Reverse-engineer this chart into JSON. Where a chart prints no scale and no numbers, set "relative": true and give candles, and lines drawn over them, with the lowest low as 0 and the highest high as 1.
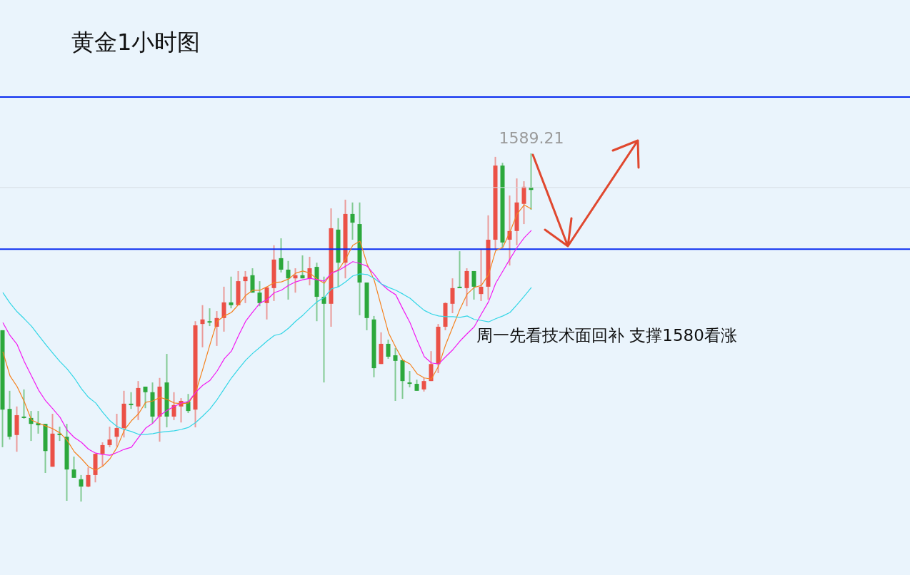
{
  "chart_data": {
    "type": "candlestick",
    "title": "黄金1小时图",
    "relative": true,
    "categories": [
      null,
      null,
      null,
      null,
      null,
      null,
      null,
      null,
      null,
      null,
      null,
      null,
      null,
      null,
      null,
      null,
      null,
      null,
      null,
      null,
      null,
      null,
      null,
      null,
      null,
      null,
      null,
      null,
      null,
      null,
      null,
      null,
      null,
      null,
      null,
      null,
      null,
      null,
      null,
      null,
      null,
      null,
      null,
      null,
      null,
      null,
      null,
      null,
      null,
      null,
      null,
      null,
      null,
      null,
      null,
      null,
      null,
      null,
      null,
      null,
      null,
      null,
      null,
      null,
      null,
      null,
      null,
      null,
      null,
      null,
      null,
      null,
      null,
      null,
      null
    ],
    "series": [
      {
        "ohlc": [
          [
            0.492,
            0.492,
            0.156,
            0.264
          ],
          [
            0.266,
            0.318,
            0.178,
            0.186
          ],
          [
            0.191,
            0.273,
            0.143,
            0.248
          ],
          [
            0.244,
            0.322,
            0.238,
            0.24
          ],
          [
            0.24,
            0.26,
            0.174,
            0.223
          ],
          [
            0.225,
            0.26,
            0.195,
            0.219
          ],
          [
            0.223,
            0.223,
            0.082,
            0.145
          ],
          [
            0.1,
            0.252,
            0.1,
            0.195
          ],
          [
            0.195,
            0.215,
            0.174,
            0.191
          ],
          [
            0.186,
            0.223,
            0.002,
            0.092
          ],
          [
            0.092,
            0.129,
            0.068,
            0.068
          ],
          [
            0.064,
            0.076,
            0,
            0.043
          ],
          [
            0.043,
            0.098,
            0.041,
            0.076
          ],
          [
            0.076,
            0.137,
            0.055,
            0.137
          ],
          [
            0.137,
            0.17,
            0.102,
            0.162
          ],
          [
            0.162,
            0.215,
            0.156,
            0.178
          ],
          [
            0.186,
            0.252,
            0.158,
            0.211
          ],
          [
            0.211,
            0.318,
            0.184,
            0.281
          ],
          [
            0.281,
            0.314,
            0.266,
            0.277
          ],
          [
            0.273,
            0.346,
            0.234,
            0.326
          ],
          [
            0.33,
            0.33,
            0.268,
            0.314
          ],
          [
            0.314,
            0.342,
            0.225,
            0.244
          ],
          [
            0.244,
            0.355,
            0.172,
            0.33
          ],
          [
            0.342,
            0.424,
            0.213,
            0.244
          ],
          [
            0.244,
            0.314,
            0.234,
            0.277
          ],
          [
            0.273,
            0.297,
            0.227,
            0.289
          ],
          [
            0.287,
            0.309,
            0.254,
            0.26
          ],
          [
            0.264,
            0.518,
            0.213,
            0.506
          ],
          [
            0.51,
            0.564,
            0.443,
            0.523
          ],
          [
            0.518,
            0.555,
            0.504,
            0.514
          ],
          [
            0.502,
            0.547,
            0.447,
            0.527
          ],
          [
            0.527,
            0.617,
            0.488,
            0.572
          ],
          [
            0.572,
            0.646,
            0.555,
            0.564
          ],
          [
            0.564,
            0.662,
            0.564,
            0.633
          ],
          [
            0.633,
            0.662,
            0.57,
            0.646
          ],
          [
            0.65,
            0.67,
            0.6,
            0.6
          ],
          [
            0.6,
            0.633,
            0.561,
            0.57
          ],
          [
            0.57,
            0.615,
            0.523,
            0.615
          ],
          [
            0.613,
            0.736,
            0.576,
            0.695
          ],
          [
            0.699,
            0.756,
            0.658,
            0.666
          ],
          [
            0.666,
            0.691,
            0.58,
            0.641
          ],
          [
            0.641,
            0.67,
            0.6,
            0.65
          ],
          [
            0.65,
            0.707,
            0.641,
            0.641
          ],
          [
            0.641,
            0.703,
            0.621,
            0.67
          ],
          [
            0.674,
            0.686,
            0.518,
            0.588
          ],
          [
            0.588,
            0.646,
            0.342,
            0.568
          ],
          [
            0.568,
            0.842,
            0.502,
            0.785
          ],
          [
            0.781,
            0.814,
            0.617,
            0.686
          ],
          [
            0.686,
            0.867,
            0.641,
            0.826
          ],
          [
            0.826,
            0.859,
            0.752,
            0.801
          ],
          [
            0.797,
            0.859,
            0.535,
            0.629
          ],
          [
            0.629,
            0.629,
            0.492,
            0.527
          ],
          [
            0.523,
            0.533,
            0.357,
            0.383
          ],
          [
            0.395,
            0.486,
            0.395,
            0.453
          ],
          [
            0.453,
            0.465,
            0.41,
            0.416
          ],
          [
            0.42,
            0.441,
            0.289,
            0.404
          ],
          [
            0.406,
            0.406,
            0.295,
            0.346
          ],
          [
            0.342,
            0.375,
            0.328,
            0.338
          ],
          [
            0.338,
            0.35,
            0.318,
            0.318
          ],
          [
            0.322,
            0.355,
            0.316,
            0.346
          ],
          [
            0.346,
            0.432,
            0.346,
            0.395
          ],
          [
            0.395,
            0.51,
            0.369,
            0.502
          ],
          [
            0.502,
            0.572,
            0.492,
            0.57
          ],
          [
            0.568,
            0.641,
            0.541,
            0.613
          ],
          [
            0.617,
            0.719,
            0.613,
            0.613
          ],
          [
            0.613,
            0.67,
            0.561,
            0.662
          ],
          [
            0.662,
            0.662,
            0.58,
            0.617
          ],
          [
            0.596,
            0.723,
            0.576,
            0.617
          ],
          [
            0.617,
            0.822,
            0.58,
            0.752
          ],
          [
            0.752,
            0.99,
            0.725,
            0.965
          ],
          [
            0.965,
            0.973,
            0.73,
            0.744
          ],
          [
            0.752,
            0.879,
            0.678,
            0.777
          ],
          [
            0.777,
            0.928,
            0.736,
            0.859
          ],
          [
            0.855,
            0.92,
            0.797,
            0.904
          ],
          [
            0.902,
            1,
            0.838,
            0.895
          ]
        ],
        "colors": [
          "#2ca83c",
          "#2ca83c",
          "#eb5147",
          "#2ca83c",
          "#2ca83c",
          "#2ca83c",
          "#2ca83c",
          "#eb5147",
          "#2ca83c",
          "#2ca83c",
          "#2ca83c",
          "#2ca83c",
          "#eb5147",
          "#eb5147",
          "#eb5147",
          "#eb5147",
          "#eb5147",
          "#eb5147",
          "#2ca83c",
          "#eb5147",
          "#2ca83c",
          "#2ca83c",
          "#eb5147",
          "#2ca83c",
          "#eb5147",
          "#eb5147",
          "#2ca83c",
          "#eb5147",
          "#eb5147",
          "#2ca83c",
          "#eb5147",
          "#eb5147",
          "#2ca83c",
          "#eb5147",
          "#eb5147",
          "#2ca83c",
          "#2ca83c",
          "#eb5147",
          "#eb5147",
          "#2ca83c",
          "#2ca83c",
          "#eb5147",
          "#2ca83c",
          "#eb5147",
          "#2ca83c",
          "#2ca83c",
          "#eb5147",
          "#2ca83c",
          "#eb5147",
          "#2ca83c",
          "#2ca83c",
          "#2ca83c",
          "#2ca83c",
          "#eb5147",
          "#2ca83c",
          "#2ca83c",
          "#2ca83c",
          "#2ca83c",
          "#2ca83c",
          "#eb5147",
          "#eb5147",
          "#eb5147",
          "#eb5147",
          "#eb5147",
          "#2ca83c",
          "#eb5147",
          "#2ca83c",
          "#eb5147",
          "#eb5147",
          "#eb5147",
          "#2ca83c",
          "#eb5147",
          "#eb5147",
          "#eb5147",
          "#2ca83c"
        ]
      },
      {
        "type": "line",
        "color": "#f5821f",
        "values": [
          0.43,
          0.361,
          0.33,
          0.287,
          0.234,
          0.225,
          0.217,
          0.209,
          0.197,
          0.176,
          0.143,
          0.123,
          0.1,
          0.09,
          0.102,
          0.123,
          0.156,
          0.205,
          0.232,
          0.252,
          0.285,
          0.289,
          0.299,
          0.293,
          0.283,
          0.281,
          0.283,
          0.314,
          0.381,
          0.451,
          0.518,
          0.533,
          0.543,
          0.566,
          0.592,
          0.607,
          0.607,
          0.617,
          0.629,
          0.631,
          0.639,
          0.656,
          0.662,
          0.656,
          0.639,
          0.627,
          0.656,
          0.666,
          0.697,
          0.736,
          0.748,
          0.682,
          0.635,
          0.559,
          0.484,
          0.443,
          0.406,
          0.395,
          0.367,
          0.355,
          0.352,
          0.389,
          0.451,
          0.502,
          0.553,
          0.596,
          0.615,
          0.621,
          0.652,
          0.721,
          0.73,
          0.775,
          0.826,
          0.852,
          0.84
        ]
      },
      {
        "type": "line",
        "color": "#f21bf2",
        "values": [
          0.514,
          0.477,
          0.451,
          0.402,
          0.361,
          0.32,
          0.289,
          0.266,
          0.242,
          0.205,
          0.184,
          0.17,
          0.15,
          0.139,
          0.135,
          0.133,
          0.141,
          0.15,
          0.156,
          0.184,
          0.211,
          0.225,
          0.248,
          0.262,
          0.273,
          0.283,
          0.287,
          0.314,
          0.334,
          0.348,
          0.375,
          0.41,
          0.432,
          0.477,
          0.518,
          0.545,
          0.57,
          0.58,
          0.6,
          0.607,
          0.621,
          0.631,
          0.637,
          0.641,
          0.637,
          0.633,
          0.656,
          0.664,
          0.676,
          0.689,
          0.684,
          0.676,
          0.652,
          0.625,
          0.607,
          0.594,
          0.553,
          0.514,
          0.463,
          0.416,
          0.398,
          0.395,
          0.416,
          0.436,
          0.461,
          0.482,
          0.502,
          0.539,
          0.574,
          0.627,
          0.662,
          0.697,
          0.73,
          0.758,
          0.779
        ]
      },
      {
        "type": "line",
        "color": "#33d6e6",
        "values": [
          0.6,
          0.57,
          0.545,
          0.525,
          0.504,
          0.477,
          0.451,
          0.426,
          0.402,
          0.381,
          0.355,
          0.324,
          0.299,
          0.283,
          0.256,
          0.232,
          0.215,
          0.207,
          0.201,
          0.193,
          0.193,
          0.195,
          0.199,
          0.201,
          0.203,
          0.207,
          0.213,
          0.227,
          0.246,
          0.266,
          0.293,
          0.324,
          0.355,
          0.381,
          0.406,
          0.426,
          0.443,
          0.461,
          0.477,
          0.482,
          0.498,
          0.518,
          0.535,
          0.555,
          0.574,
          0.586,
          0.611,
          0.617,
          0.631,
          0.648,
          0.654,
          0.652,
          0.641,
          0.625,
          0.615,
          0.607,
          0.596,
          0.584,
          0.566,
          0.549,
          0.539,
          0.533,
          0.531,
          0.531,
          0.529,
          0.533,
          0.523,
          0.52,
          0.516,
          0.525,
          0.533,
          0.543,
          0.566,
          0.59,
          0.615
        ]
      }
    ],
    "ref_lines": [
      {
        "axis": "y",
        "value": 1.162,
        "color": "#0a2cf0"
      },
      {
        "axis": "y",
        "value": 0.725,
        "color": "#0a2cf0"
      },
      {
        "axis": "y",
        "value": 0.902,
        "color": "#d6dde3"
      }
    ],
    "annotations": [
      {
        "text": "1589.21",
        "y": 1
      },
      "周一先看技术面回补 支撑1580看涨"
    ]
  }
}
